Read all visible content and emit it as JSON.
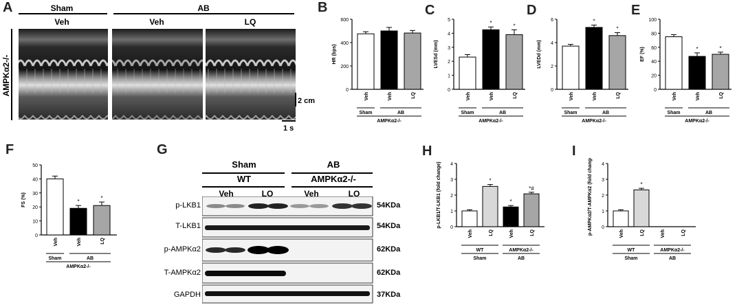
{
  "panel_letters": {
    "a": "A",
    "b": "B",
    "c": "C",
    "d": "D",
    "e": "E",
    "f": "F",
    "g": "G",
    "h": "H",
    "i": "I"
  },
  "panel_a": {
    "group1": "Sham",
    "group1_sub": "Veh",
    "group2": "AB",
    "group2_sub1": "Veh",
    "group2_sub2": "LQ",
    "row_label": "AMPKα2-/-",
    "scale_v": "2 cm",
    "scale_h": "1 s"
  },
  "colors": {
    "white": "#ffffff",
    "black": "#000000",
    "gray": "#a6a6a6",
    "light_gray": "#d8d8d8",
    "axis": "#000000"
  },
  "chart_data": [
    {
      "id": "B",
      "type": "bar",
      "ylabel": "HR (bps)",
      "ylim": [
        0,
        600
      ],
      "yticks": [
        0,
        200,
        400,
        600
      ],
      "categories": [
        "Veh",
        "Veh",
        "LQ"
      ],
      "values": [
        475,
        500,
        482
      ],
      "errors": [
        18,
        30,
        22
      ],
      "fills": [
        "white",
        "black",
        "gray"
      ],
      "stars": [
        "",
        "",
        ""
      ],
      "groups": [
        {
          "label": "Sham",
          "from": 0,
          "to": 0
        },
        {
          "label": "AB",
          "from": 1,
          "to": 2
        }
      ],
      "genotype": "AMPKα2-/-"
    },
    {
      "id": "C",
      "type": "bar",
      "ylabel": "LVESd (mm)",
      "ylim": [
        0,
        5
      ],
      "yticks": [
        0,
        1,
        2,
        3,
        4,
        5
      ],
      "categories": [
        "Veh",
        "Veh",
        "LQ"
      ],
      "values": [
        2.3,
        4.25,
        3.9
      ],
      "errors": [
        0.18,
        0.2,
        0.35
      ],
      "fills": [
        "white",
        "black",
        "gray"
      ],
      "stars": [
        "",
        "*",
        "*"
      ],
      "groups": [
        {
          "label": "Sham",
          "from": 0,
          "to": 0
        },
        {
          "label": "AB",
          "from": 1,
          "to": 2
        }
      ],
      "genotype": "AMPKα2-/-"
    },
    {
      "id": "D",
      "type": "bar",
      "ylabel": "LVEDd (mm)",
      "ylim": [
        0,
        6
      ],
      "yticks": [
        0,
        2,
        4,
        6
      ],
      "categories": [
        "Veh",
        "Veh",
        "LQ"
      ],
      "values": [
        3.7,
        5.3,
        4.6
      ],
      "errors": [
        0.15,
        0.2,
        0.25
      ],
      "fills": [
        "white",
        "black",
        "gray"
      ],
      "stars": [
        "",
        "*",
        "*"
      ],
      "groups": [
        {
          "label": "Sham",
          "from": 0,
          "to": 0
        },
        {
          "label": "AB",
          "from": 1,
          "to": 2
        }
      ],
      "genotype": "AMPKα2-/-"
    },
    {
      "id": "E",
      "type": "bar",
      "ylabel": "EF (%)",
      "ylim": [
        0,
        100
      ],
      "yticks": [
        0,
        20,
        40,
        60,
        80,
        100
      ],
      "categories": [
        "Veh",
        "Veh",
        "LQ"
      ],
      "values": [
        75,
        47,
        50
      ],
      "errors": [
        3,
        5,
        3
      ],
      "fills": [
        "white",
        "black",
        "gray"
      ],
      "stars": [
        "",
        "*",
        "*"
      ],
      "groups": [
        {
          "label": "Sham",
          "from": 0,
          "to": 0
        },
        {
          "label": "AB",
          "from": 1,
          "to": 2
        }
      ],
      "genotype": "AMPKα2-/-"
    },
    {
      "id": "F",
      "type": "bar",
      "ylabel": "FS (%)",
      "ylim": [
        0,
        50
      ],
      "yticks": [
        0,
        10,
        20,
        30,
        40,
        50
      ],
      "categories": [
        "Veh",
        "Veh",
        "LQ"
      ],
      "values": [
        40,
        19,
        21
      ],
      "errors": [
        2,
        2,
        2.5
      ],
      "fills": [
        "white",
        "black",
        "gray"
      ],
      "stars": [
        "",
        "*",
        "*"
      ],
      "groups": [
        {
          "label": "Sham",
          "from": 0,
          "to": 0
        },
        {
          "label": "AB",
          "from": 1,
          "to": 2
        }
      ],
      "genotype": "AMPKα2-/-"
    },
    {
      "id": "H",
      "type": "bar",
      "ylabel": "p-LKB1/T-LKB1 (fold change)",
      "ylim": [
        0,
        4
      ],
      "yticks": [
        0,
        1,
        2,
        3,
        4
      ],
      "categories": [
        "Veh",
        "LQ",
        "Veh",
        "LQ"
      ],
      "values": [
        1.0,
        2.55,
        1.25,
        2.08
      ],
      "errors": [
        0.07,
        0.12,
        0.09,
        0.1
      ],
      "fills": [
        "white",
        "light_gray",
        "black",
        "gray"
      ],
      "stars": [
        "",
        "*",
        "*",
        "*#"
      ],
      "groups": [
        {
          "label": "WT",
          "sub": "Sham",
          "from": 0,
          "to": 1
        },
        {
          "label": "AMPKα2-/-",
          "sub": "AB",
          "from": 2,
          "to": 3
        }
      ]
    },
    {
      "id": "I",
      "type": "bar",
      "ylabel": "p-AMPKα2/T-AMPKα2 (fold change)",
      "ylim": [
        0,
        4
      ],
      "yticks": [
        0,
        1,
        2,
        3,
        4
      ],
      "categories": [
        "Veh",
        "LQ",
        "Veh",
        "LQ"
      ],
      "values": [
        1.0,
        2.33,
        0,
        0
      ],
      "errors": [
        0.07,
        0.1,
        0,
        0
      ],
      "fills": [
        "white",
        "light_gray",
        "black",
        "gray"
      ],
      "stars": [
        "",
        "*",
        "",
        ""
      ],
      "groups": [
        {
          "label": "WT",
          "sub": "Sham",
          "from": 0,
          "to": 1
        },
        {
          "label": "AMPKα2-/-",
          "sub": "AB",
          "from": 2,
          "to": 3
        }
      ]
    }
  ],
  "panel_g": {
    "group1": "Sham",
    "group2": "AB",
    "genotype1": "WT",
    "genotype2": "AMPKα2-/-",
    "lanes": [
      "Veh",
      "LQ",
      "Veh",
      "LQ"
    ],
    "rows": [
      {
        "label": "p-LKB1",
        "size": "54KDa"
      },
      {
        "label": "T-LKB1",
        "size": "54KDa"
      },
      {
        "label": "p-AMPKα2",
        "size": "62KDa"
      },
      {
        "label": "T-AMPKα2",
        "size": "62KDa"
      },
      {
        "label": "GAPDH",
        "size": "37KDa"
      }
    ]
  }
}
